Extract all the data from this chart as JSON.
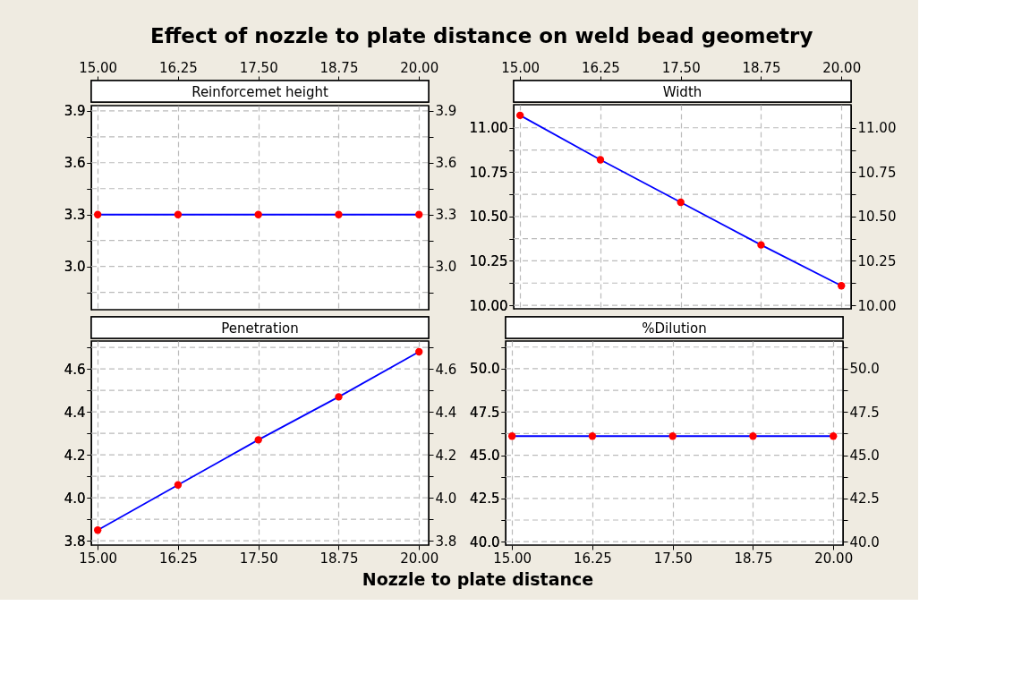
{
  "chart_data": [
    {
      "type": "line",
      "title": "Reinforcemet height",
      "annotations": [
        "Effect of nozzle to plate distance on weld bead geometry"
      ],
      "x": [
        15,
        16.25,
        17.5,
        18.75,
        20
      ],
      "series": [
        {
          "color": "#0000ff",
          "colors": [
            "#ff0000",
            "#ff0000",
            "#ff0000",
            "#ff0000",
            "#ff0000"
          ],
          "values": [
            3.3,
            3.3,
            3.3,
            3.3,
            3.3
          ]
        }
      ],
      "xlim": [
        14.9,
        20.15
      ],
      "xticks": [
        {
          "value": 15,
          "label": "15.00"
        },
        {
          "value": 16.25,
          "label": "16.25"
        },
        {
          "value": 17.5,
          "label": "17.50"
        },
        {
          "value": 18.75,
          "label": "18.75"
        },
        {
          "value": 20,
          "label": "20.00"
        }
      ],
      "ylim": [
        2.75,
        3.93
      ],
      "yticks": [
        {
          "value": 2.85,
          "label": null
        },
        {
          "value": 3.0,
          "label": "3.0"
        },
        {
          "value": 3.15,
          "label": null
        },
        3.3,
        {
          "value": 3.45,
          "label": null
        },
        3.6,
        {
          "value": 3.75,
          "label": null
        },
        3.9
      ],
      "y2lim": [
        2.75,
        3.93
      ],
      "y2ticks": [
        {
          "value": 2.85,
          "label": null
        },
        {
          "value": 3.0,
          "label": "3.0"
        },
        {
          "value": 3.15,
          "label": null
        },
        3.3,
        {
          "value": 3.45,
          "label": null
        },
        3.6,
        {
          "value": 3.75,
          "label": null
        },
        3.9
      ],
      "grid": true,
      "marker": "circle",
      "line_style": "solid"
    },
    {
      "type": "line",
      "title": "Width",
      "x": [
        15,
        16.25,
        17.5,
        18.75,
        20
      ],
      "series": [
        {
          "color": "#0000ff",
          "colors": [
            "#ff0000",
            "#ff0000",
            "#ff0000",
            "#ff0000",
            "#ff0000"
          ],
          "values": [
            11.07,
            10.82,
            10.58,
            10.34,
            10.11
          ]
        }
      ],
      "xlim": [
        14.9,
        20.15
      ],
      "xticks": [
        {
          "value": 15,
          "label": "15.00"
        },
        {
          "value": 16.25,
          "label": "16.25"
        },
        {
          "value": 17.5,
          "label": "17.50"
        },
        {
          "value": 18.75,
          "label": "18.75"
        },
        {
          "value": 20,
          "label": "20.00"
        }
      ],
      "ylim": [
        9.98,
        11.13
      ],
      "yticks": [
        {
          "value": 10.0,
          "label": "10.00"
        },
        {
          "value": 10.125,
          "label": null
        },
        10.25,
        {
          "value": 10.375,
          "label": null
        },
        {
          "value": 10.5,
          "label": "10.50"
        },
        {
          "value": 10.625,
          "label": null
        },
        10.75,
        {
          "value": 10.875,
          "label": null
        },
        {
          "value": 11.0,
          "label": "11.00"
        }
      ],
      "y2lim": [
        9.98,
        11.13
      ],
      "y2ticks": [
        {
          "value": 10.0,
          "label": "10.00"
        },
        {
          "value": 10.125,
          "label": null
        },
        10.25,
        {
          "value": 10.375,
          "label": null
        },
        {
          "value": 10.5,
          "label": "10.50"
        },
        {
          "value": 10.625,
          "label": null
        },
        10.75,
        {
          "value": 10.875,
          "label": null
        },
        {
          "value": 11.0,
          "label": "11.00"
        }
      ],
      "grid": true,
      "marker": "circle",
      "line_style": "solid"
    },
    {
      "type": "line",
      "title": "Penetration",
      "xlabel": "Nozzle to plate distance",
      "x": [
        15,
        16.25,
        17.5,
        18.75,
        20
      ],
      "series": [
        {
          "color": "#0000ff",
          "colors": [
            "#ff0000",
            "#ff0000",
            "#ff0000",
            "#ff0000",
            "#ff0000"
          ],
          "values": [
            3.85,
            4.06,
            4.27,
            4.47,
            4.68
          ]
        }
      ],
      "xlim": [
        14.9,
        20.15
      ],
      "xticks": [
        {
          "value": 15,
          "label": "15.00"
        },
        {
          "value": 16.25,
          "label": "16.25"
        },
        {
          "value": 17.5,
          "label": "17.50"
        },
        {
          "value": 18.75,
          "label": "18.75"
        },
        {
          "value": 20,
          "label": "20.00"
        }
      ],
      "ylim": [
        3.78,
        4.73
      ],
      "yticks": [
        3.8,
        {
          "value": 3.9,
          "label": null
        },
        {
          "value": 4.0,
          "label": "4.0"
        },
        {
          "value": 4.1,
          "label": null
        },
        4.2,
        {
          "value": 4.3,
          "label": null
        },
        4.4,
        {
          "value": 4.5,
          "label": null
        },
        4.6,
        {
          "value": 4.7,
          "label": null
        }
      ],
      "y2lim": [
        3.78,
        4.73
      ],
      "y2ticks": [
        3.8,
        {
          "value": 3.9,
          "label": null
        },
        {
          "value": 4.0,
          "label": "4.0"
        },
        {
          "value": 4.1,
          "label": null
        },
        4.2,
        {
          "value": 4.3,
          "label": null
        },
        4.4,
        {
          "value": 4.5,
          "label": null
        },
        4.6,
        {
          "value": 4.7,
          "label": null
        }
      ],
      "grid": true,
      "marker": "circle",
      "line_style": "solid"
    },
    {
      "type": "line",
      "title": "%Dilution",
      "x": [
        15,
        16.25,
        17.5,
        18.75,
        20
      ],
      "series": [
        {
          "color": "#0000ff",
          "colors": [
            "#ff0000",
            "#ff0000",
            "#ff0000",
            "#ff0000",
            "#ff0000"
          ],
          "values": [
            46.1,
            46.1,
            46.1,
            46.1,
            46.1
          ]
        }
      ],
      "xlim": [
        14.9,
        20.15
      ],
      "xticks": [
        {
          "value": 15,
          "label": "15.00"
        },
        {
          "value": 16.25,
          "label": "16.25"
        },
        {
          "value": 17.5,
          "label": "17.50"
        },
        {
          "value": 18.75,
          "label": "18.75"
        },
        {
          "value": 20,
          "label": "20.00"
        }
      ],
      "ylim": [
        39.8,
        51.6
      ],
      "yticks": [
        {
          "value": 40,
          "label": "40.0"
        },
        {
          "value": 41.25,
          "label": null
        },
        42.5,
        {
          "value": 43.75,
          "label": null
        },
        {
          "value": 45,
          "label": "45.0"
        },
        {
          "value": 46.25,
          "label": null
        },
        47.5,
        {
          "value": 48.75,
          "label": null
        },
        {
          "value": 50,
          "label": "50.0"
        },
        {
          "value": 51.25,
          "label": null
        }
      ],
      "y2lim": [
        39.8,
        51.6
      ],
      "y2ticks": [
        {
          "value": 40,
          "label": "40.0"
        },
        {
          "value": 41.25,
          "label": null
        },
        42.5,
        {
          "value": 43.75,
          "label": null
        },
        {
          "value": 45,
          "label": "45.0"
        },
        {
          "value": 46.25,
          "label": null
        },
        47.5,
        {
          "value": 48.75,
          "label": null
        },
        {
          "value": 50,
          "label": "50.0"
        },
        {
          "value": 51.25,
          "label": null
        }
      ],
      "grid": true,
      "marker": "circle",
      "line_style": "solid"
    }
  ]
}
